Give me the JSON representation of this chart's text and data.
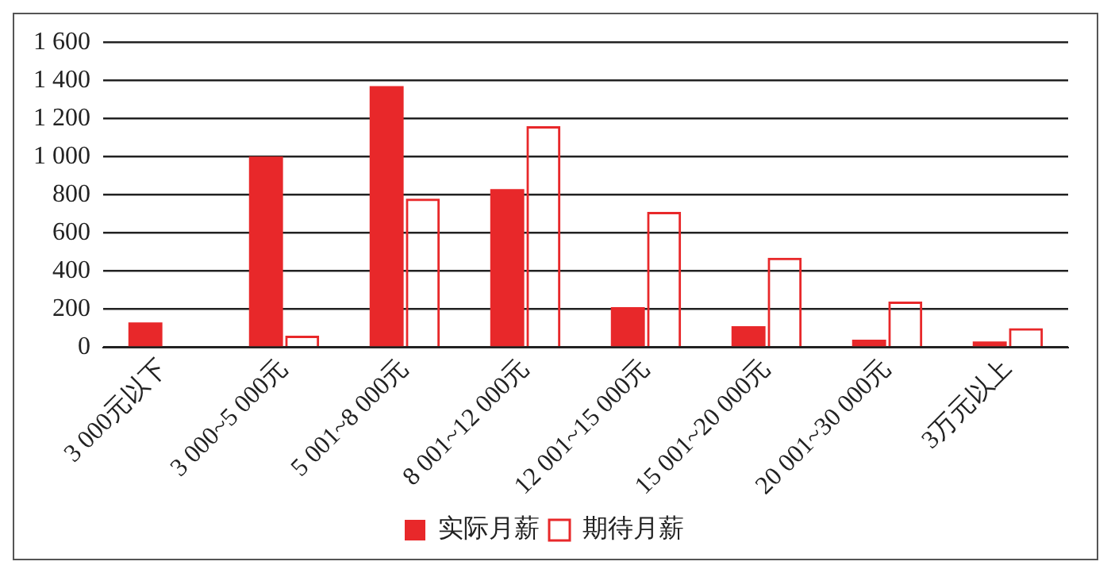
{
  "chart_data": {
    "type": "bar",
    "categories": [
      "3 000元以下",
      "3 000~5 000元",
      "5 001~8 000元",
      "8 001~12 000元",
      "12 001~15 000元",
      "15 001~20 000元",
      "20 001~30 000元",
      "3万元以上"
    ],
    "series": [
      {
        "name": "实际月薪",
        "color": "#e8282a",
        "values": [
          130,
          1000,
          1370,
          830,
          210,
          110,
          40,
          30
        ]
      },
      {
        "name": "期待月薪",
        "color": "#e8282a",
        "values": [
          0,
          60,
          780,
          1160,
          710,
          470,
          240,
          100
        ]
      }
    ],
    "ylim": [
      0,
      1600
    ],
    "yticks": [
      0,
      200,
      400,
      600,
      800,
      1000,
      1200,
      1400,
      1600
    ],
    "grid": "y",
    "legend": "bottom"
  }
}
